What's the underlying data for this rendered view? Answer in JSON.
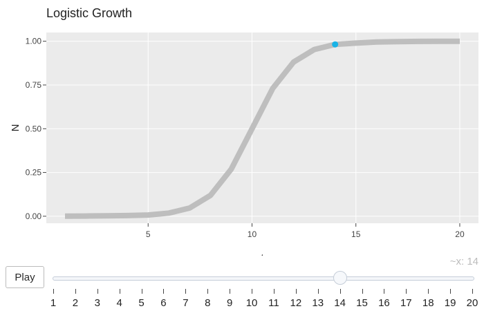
{
  "chart_data": {
    "type": "line",
    "title": "Logistic Growth",
    "xlabel": "t",
    "ylabel": "N",
    "xlim": [
      0.1,
      20.9
    ],
    "ylim": [
      -0.04,
      1.05
    ],
    "x_ticks": [
      5,
      10,
      15,
      20
    ],
    "y_ticks": [
      0.0,
      0.25,
      0.5,
      0.75,
      1.0
    ],
    "y_tick_labels": [
      "0.00",
      "0.25",
      "0.50",
      "0.75",
      "1.00"
    ],
    "grid": true,
    "background": "#ebebeb",
    "series": [
      {
        "color": "#bebebe",
        "x": [
          1,
          2,
          3,
          4,
          5,
          6,
          7,
          8,
          9,
          10,
          11,
          12,
          13,
          14,
          15,
          16,
          17,
          18,
          19,
          20
        ],
        "y": [
          0.0001,
          0.0012,
          0.0025,
          0.004,
          0.007,
          0.018,
          0.047,
          0.119,
          0.269,
          0.5,
          0.731,
          0.881,
          0.953,
          0.982,
          0.989,
          0.996,
          0.998,
          0.999,
          1.0,
          1.0
        ]
      }
    ],
    "highlight_point": {
      "x": 14,
      "y": 0.982,
      "color": "#1ab3e6"
    }
  },
  "controls": {
    "play_label": "Play",
    "slider_readout": "~x: 14",
    "slider_min": 1,
    "slider_max": 20,
    "slider_value": 14,
    "slider_labels": [
      "1",
      "2",
      "3",
      "4",
      "5",
      "6",
      "7",
      "8",
      "9",
      "10",
      "11",
      "12",
      "13",
      "14",
      "15",
      "16",
      "17",
      "18",
      "19",
      "20"
    ]
  }
}
